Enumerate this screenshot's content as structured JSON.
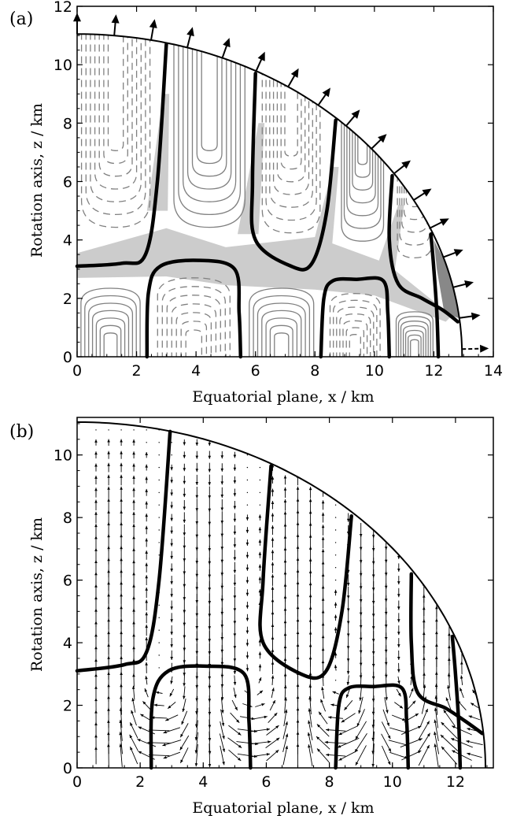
{
  "chart_data": [
    {
      "panel": "(a)",
      "type": "contour",
      "xlabel": "Equatorial plane, x / km",
      "ylabel": "Rotation axis,  z / km",
      "xlim": [
        0,
        14
      ],
      "ylim": [
        0,
        12
      ],
      "xticks": [
        "0",
        "2",
        "4",
        "6",
        "8",
        "10",
        "12",
        "14"
      ],
      "yticks": [
        "0",
        "2",
        "4",
        "6",
        "8",
        "10",
        "12"
      ],
      "boundary": {
        "equatorial_radius": 12.95,
        "polar_radius": 11.05
      },
      "nodal_lines": [
        [
          [
            0,
            3.1
          ],
          [
            1.5,
            3.2
          ],
          [
            2.3,
            3.5
          ],
          [
            2.7,
            6.0
          ],
          [
            3.0,
            10.7
          ]
        ],
        [
          [
            2.35,
            0
          ],
          [
            2.4,
            2.2
          ],
          [
            2.8,
            3.1
          ],
          [
            4.1,
            3.3
          ],
          [
            5.3,
            3.0
          ],
          [
            5.45,
            1.5
          ],
          [
            5.5,
            0
          ]
        ],
        [
          [
            6.0,
            9.7
          ],
          [
            5.9,
            6.0
          ],
          [
            6.0,
            4.0
          ],
          [
            7.2,
            3.1
          ],
          [
            7.9,
            3.2
          ],
          [
            8.4,
            5.0
          ],
          [
            8.7,
            8.1
          ]
        ],
        [
          [
            8.2,
            0
          ],
          [
            8.3,
            2.0
          ],
          [
            8.6,
            2.6
          ],
          [
            9.4,
            2.65
          ],
          [
            10.3,
            2.6
          ],
          [
            10.45,
            1.5
          ],
          [
            10.5,
            0
          ]
        ],
        [
          [
            10.6,
            6.2
          ],
          [
            10.5,
            4.0
          ],
          [
            10.8,
            2.5
          ],
          [
            11.6,
            2.0
          ],
          [
            12.3,
            1.6
          ],
          [
            12.8,
            1.2
          ]
        ],
        [
          [
            11.9,
            4.2
          ],
          [
            12.0,
            3.0
          ],
          [
            12.1,
            1.5
          ],
          [
            12.15,
            0
          ]
        ]
      ],
      "shaded_regions": [
        "light-grey",
        "dark-grey"
      ],
      "contour_style": {
        "positive": "solid-grey",
        "negative": "dashed-grey"
      },
      "surface_arrows": true
    },
    {
      "panel": "(b)",
      "type": "quiver",
      "xlabel": "Equatorial plane, x / km",
      "ylabel": "Rotation axis,  z / km",
      "xlim": [
        0,
        13.2
      ],
      "ylim": [
        0,
        11.2
      ],
      "xticks": [
        "0",
        "2",
        "4",
        "6",
        "8",
        "10",
        "12"
      ],
      "yticks": [
        "0",
        "2",
        "4",
        "6",
        "8",
        "10"
      ],
      "boundary": {
        "equatorial_radius": 12.95,
        "polar_radius": 11.05
      },
      "nodal_lines": [
        [
          [
            0,
            3.1
          ],
          [
            1.5,
            3.3
          ],
          [
            2.2,
            3.7
          ],
          [
            2.6,
            6.0
          ],
          [
            2.95,
            10.75
          ]
        ],
        [
          [
            2.35,
            0
          ],
          [
            2.4,
            2.2
          ],
          [
            2.9,
            3.1
          ],
          [
            4.1,
            3.25
          ],
          [
            5.3,
            3.0
          ],
          [
            5.45,
            1.5
          ],
          [
            5.5,
            0
          ]
        ],
        [
          [
            6.15,
            9.65
          ],
          [
            5.9,
            6.0
          ],
          [
            5.9,
            4.0
          ],
          [
            7.1,
            3.0
          ],
          [
            7.9,
            3.1
          ],
          [
            8.4,
            5.0
          ],
          [
            8.7,
            8.05
          ]
        ],
        [
          [
            8.2,
            0
          ],
          [
            8.3,
            2.0
          ],
          [
            8.6,
            2.55
          ],
          [
            9.4,
            2.6
          ],
          [
            10.3,
            2.55
          ],
          [
            10.45,
            1.5
          ],
          [
            10.5,
            0
          ]
        ],
        [
          [
            10.6,
            6.2
          ],
          [
            10.6,
            4.0
          ],
          [
            10.8,
            2.4
          ],
          [
            11.7,
            1.9
          ],
          [
            12.3,
            1.5
          ],
          [
            12.85,
            1.1
          ]
        ],
        [
          [
            11.9,
            4.2
          ],
          [
            12.0,
            3.0
          ],
          [
            12.1,
            1.5
          ],
          [
            12.15,
            0
          ]
        ]
      ],
      "vector_field": true
    }
  ]
}
